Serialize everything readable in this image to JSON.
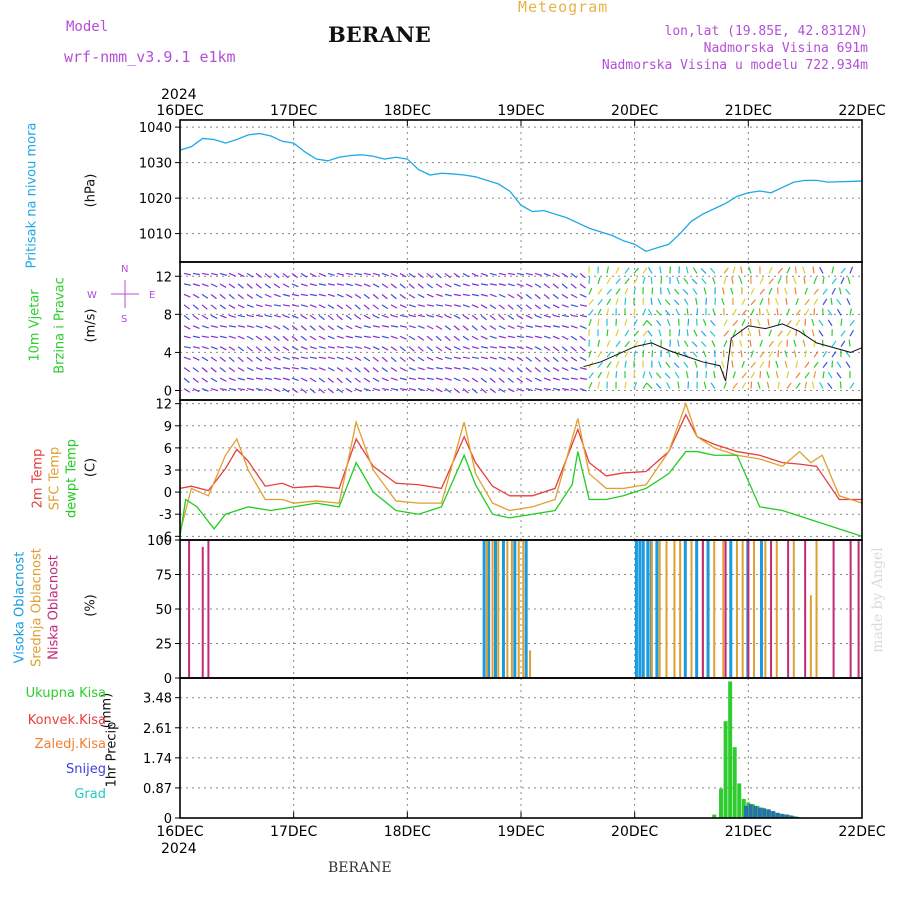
{
  "header": {
    "model_label": "Model",
    "model_name": "wrf-nmm_v3.9.1 e1km",
    "station": "BERANE",
    "meteogram": "Meteogram",
    "lonlat": "lon,lat (19.85E, 42.8312N)",
    "altitude": "Nadmorska Visina 691m",
    "model_altitude": "Nadmorska Visina u modelu 722.934m"
  },
  "footer": {
    "station": "BERANE",
    "credit": "made by Angel"
  },
  "colors": {
    "pressure": "#1fa8e6",
    "wind_label": "#2ecc2e",
    "wind_rose": "#b44fd6",
    "temp": "#e83e3e",
    "sfc_temp": "#e0a030",
    "dew": "#22cc22",
    "cloud_high": "#1a9be0",
    "cloud_mid": "#e0a030",
    "cloud_low": "#c4297a",
    "precip_total": "#2ecc2e",
    "precip_conv": "#e83e3e",
    "precip_frz": "#f08030",
    "precip_snow": "#4040e0",
    "precip_grad": "#22c8c8"
  },
  "wind_rose": {
    "n": "N",
    "s": "S",
    "e": "E",
    "w": "W"
  },
  "chart_data": [
    {
      "type": "line",
      "panel": "pressure",
      "ylabel": "Pritisak na nivou mora",
      "unit": "(hPa)",
      "year": "2024",
      "x_ticks": [
        "16DEC",
        "17DEC",
        "18DEC",
        "19DEC",
        "20DEC",
        "21DEC",
        "22DEC"
      ],
      "ylim": [
        1002,
        1042
      ],
      "y_ticks": [
        "1010",
        "1020",
        "1030",
        "1040"
      ],
      "y_tick_values": [
        1010,
        1020,
        1030,
        1040
      ],
      "series": [
        {
          "x": [
            0,
            0.1,
            0.2,
            0.3,
            0.4,
            0.5,
            0.6,
            0.7,
            0.8,
            0.9,
            1.0,
            1.1,
            1.2,
            1.3,
            1.4,
            1.5,
            1.6,
            1.7,
            1.8,
            1.9,
            2.0,
            2.1,
            2.2,
            2.3,
            2.4,
            2.5,
            2.6,
            2.7,
            2.8,
            2.9,
            3.0,
            3.1,
            3.2,
            3.3,
            3.4,
            3.5,
            3.6,
            3.7,
            3.8,
            3.9,
            4.0,
            4.1,
            4.2,
            4.3,
            4.4,
            4.5,
            4.6,
            4.7,
            4.8,
            4.9,
            5.0,
            5.1,
            5.2,
            5.3,
            5.4,
            5.5,
            5.6,
            5.7,
            5.8,
            5.9,
            6.0
          ],
          "values": [
            1033.5,
            1034.5,
            1036.8,
            1036.5,
            1035.5,
            1036.5,
            1037.8,
            1038.2,
            1037.5,
            1036,
            1035.5,
            1033,
            1031,
            1030.5,
            1031.5,
            1032,
            1032.2,
            1031.8,
            1031,
            1031.5,
            1031,
            1028,
            1026.5,
            1027,
            1026.8,
            1026.5,
            1026,
            1025,
            1024,
            1022,
            1018,
            1016.2,
            1016.5,
            1015.5,
            1014.5,
            1013,
            1011.5,
            1010.5,
            1009.5,
            1008,
            1007,
            1005,
            1006,
            1007,
            1010,
            1013.5,
            1015.5,
            1017,
            1018.5,
            1020.5,
            1021.5,
            1022,
            1021.5,
            1023,
            1024.5,
            1025,
            1025,
            1024.5,
            1024.6,
            1024.7,
            1024.8
          ]
        }
      ]
    },
    {
      "type": "line",
      "panel": "wind",
      "ylabel1": "10m Vjetar",
      "ylabel2": "Brzina i Pravac",
      "unit": "(m/s)",
      "ylim": [
        -1,
        13.5
      ],
      "y_ticks": [
        "0",
        "4",
        "8",
        "12"
      ],
      "y_tick_values": [
        0,
        4,
        8,
        12
      ],
      "series": [
        {
          "x": [
            3.55,
            3.7,
            3.85,
            4.0,
            4.15,
            4.3,
            4.45,
            4.6,
            4.75,
            4.8,
            4.85,
            5.0,
            5.15,
            5.3,
            5.45,
            5.6,
            5.75,
            5.9,
            6.0
          ],
          "values": [
            2.5,
            3.0,
            3.8,
            4.6,
            5.0,
            4.2,
            3.6,
            3.0,
            2.6,
            1.0,
            5.5,
            6.8,
            6.5,
            7.0,
            6.2,
            5.0,
            4.5,
            4.0,
            4.5
          ]
        }
      ]
    },
    {
      "type": "line",
      "panel": "temperature",
      "ylabel1": "2m Temp",
      "ylabel2": "SFC Temp",
      "ylabel3": "dewpt Temp",
      "unit": "(C)",
      "ylim": [
        -6.5,
        12.5
      ],
      "y_ticks": [
        "-6",
        "-3",
        "0",
        "3",
        "6",
        "9",
        "12"
      ],
      "y_tick_values": [
        -6,
        -3,
        0,
        3,
        6,
        9,
        12
      ],
      "series": [
        {
          "name": "2m Temp",
          "x": [
            0,
            0.1,
            0.25,
            0.4,
            0.5,
            0.6,
            0.75,
            0.9,
            1.0,
            1.2,
            1.4,
            1.55,
            1.7,
            1.9,
            2.1,
            2.3,
            2.5,
            2.6,
            2.75,
            2.9,
            3.1,
            3.3,
            3.5,
            3.6,
            3.75,
            3.9,
            4.1,
            4.3,
            4.45,
            4.55,
            4.7,
            4.9,
            5.1,
            5.3,
            5.45,
            5.6,
            5.8,
            6.0
          ],
          "values": [
            0.5,
            0.8,
            0.2,
            3.2,
            5.8,
            4.2,
            0.8,
            1.2,
            0.6,
            0.8,
            0.5,
            7.2,
            3.5,
            1.2,
            1.0,
            0.5,
            7.5,
            4.0,
            0.8,
            -0.5,
            -0.5,
            0.5,
            8.5,
            4.0,
            2.2,
            2.6,
            2.8,
            5.5,
            10.5,
            7.5,
            6.5,
            5.5,
            5.0,
            4.0,
            3.8,
            3.5,
            -1.0,
            -1.0
          ]
        },
        {
          "name": "SFC Temp",
          "x": [
            0,
            0.1,
            0.25,
            0.4,
            0.5,
            0.6,
            0.75,
            0.9,
            1.0,
            1.2,
            1.4,
            1.55,
            1.7,
            1.9,
            2.1,
            2.3,
            2.5,
            2.6,
            2.75,
            2.9,
            3.1,
            3.3,
            3.5,
            3.6,
            3.75,
            3.9,
            4.1,
            4.3,
            4.45,
            4.55,
            4.7,
            4.9,
            5.1,
            5.3,
            5.45,
            5.55,
            5.65,
            5.8,
            6.0
          ],
          "values": [
            -5.5,
            0.5,
            -0.5,
            5.0,
            7.2,
            3.0,
            -1.0,
            -1.0,
            -1.5,
            -1.2,
            -1.5,
            9.5,
            3.0,
            -1.2,
            -1.5,
            -1.5,
            9.5,
            2.5,
            -1.5,
            -2.5,
            -2.0,
            -1.0,
            10.0,
            2.5,
            0.5,
            0.5,
            1.0,
            5.5,
            12.0,
            7.5,
            6.0,
            5.0,
            4.5,
            3.5,
            5.5,
            4.0,
            5.0,
            -0.5,
            -1.5
          ]
        },
        {
          "name": "dewpt Temp",
          "x": [
            0,
            0.05,
            0.15,
            0.3,
            0.4,
            0.6,
            0.8,
            1.0,
            1.2,
            1.4,
            1.55,
            1.7,
            1.9,
            2.1,
            2.3,
            2.5,
            2.6,
            2.75,
            2.9,
            3.1,
            3.3,
            3.45,
            3.5,
            3.6,
            3.75,
            3.9,
            4.1,
            4.3,
            4.45,
            4.55,
            4.7,
            4.9,
            5.1,
            5.3,
            5.5,
            5.7,
            5.9,
            6.0
          ],
          "values": [
            -6.0,
            -1.0,
            -2.0,
            -5.0,
            -3.0,
            -2.0,
            -2.5,
            -2.0,
            -1.5,
            -2.0,
            4.0,
            0.0,
            -2.5,
            -3.0,
            -2.0,
            5.0,
            1.0,
            -3.0,
            -3.5,
            -3.0,
            -2.5,
            1.0,
            5.5,
            -1.0,
            -1.0,
            -0.5,
            0.5,
            2.5,
            5.5,
            5.5,
            5.0,
            5.0,
            -2.0,
            -2.5,
            -3.5,
            -4.5,
            -5.5,
            -6.0
          ]
        }
      ]
    },
    {
      "type": "bar",
      "panel": "clouds",
      "ylabel1": "Visoka Oblacnost",
      "ylabel2": "Srednja Oblacnost",
      "ylabel3": "Niska Oblacnost",
      "unit": "(%)",
      "ylim": [
        0,
        100
      ],
      "y_ticks": [
        "0",
        "25",
        "50",
        "75",
        "100"
      ],
      "y_tick_values": [
        0,
        25,
        50,
        75,
        100
      ],
      "series": [
        {
          "name": "Visoka Oblacnost",
          "x": [
            2.68,
            2.72,
            2.78,
            2.85,
            2.95,
            3.05,
            4.02,
            4.05,
            4.08,
            4.12,
            4.15,
            4.2,
            4.45,
            4.55,
            4.65,
            4.85,
            5.0,
            5.12
          ],
          "values": [
            100,
            100,
            100,
            100,
            100,
            100,
            100,
            100,
            100,
            100,
            100,
            100,
            100,
            100,
            100,
            100,
            100,
            100
          ]
        },
        {
          "name": "Srednja Oblacnost",
          "x": [
            2.7,
            2.75,
            2.8,
            2.88,
            2.92,
            2.98,
            3.02,
            3.08,
            4.15,
            4.22,
            4.28,
            4.35,
            4.4,
            4.5,
            4.6,
            4.7,
            4.78,
            4.9,
            4.95,
            5.05,
            5.15,
            5.25,
            5.4,
            5.55,
            5.6
          ],
          "values": [
            100,
            100,
            100,
            100,
            100,
            100,
            100,
            20,
            100,
            100,
            100,
            100,
            100,
            100,
            100,
            100,
            100,
            100,
            100,
            100,
            100,
            100,
            100,
            60,
            100
          ]
        },
        {
          "name": "Niska Oblacnost",
          "x": [
            0.08,
            0.2,
            0.25,
            4.6,
            4.8,
            5.0,
            5.2,
            5.35,
            5.5,
            5.75,
            5.9,
            5.97
          ],
          "values": [
            100,
            95,
            100,
            100,
            100,
            100,
            100,
            100,
            100,
            100,
            100,
            100
          ]
        }
      ]
    },
    {
      "type": "bar",
      "panel": "precip",
      "ylabel": "1hr Precip",
      "unit": "(mm)",
      "ylim": [
        0,
        4.05
      ],
      "y_ticks": [
        "0",
        "0.87",
        "1.74",
        "2.61",
        "3.48"
      ],
      "y_tick_values": [
        0,
        0.87,
        1.74,
        2.61,
        3.48
      ],
      "legend": [
        "Ukupna Kisa",
        "Konvek.Kisa",
        "Zaledj.Kisa",
        "Snijeg",
        "Grad"
      ],
      "series": [
        {
          "name": "Ukupna Kisa",
          "x": [
            4.7,
            4.76,
            4.8,
            4.84,
            4.88,
            4.92,
            4.96,
            5.0,
            5.04,
            5.08,
            5.12,
            5.16,
            5.2,
            5.24,
            5.28,
            5.32,
            5.36,
            5.4,
            5.44
          ],
          "values": [
            0.1,
            0.85,
            2.8,
            3.95,
            2.05,
            1.0,
            0.55,
            0.45,
            0.4,
            0.35,
            0.3,
            0.25,
            0.2,
            0.15,
            0.12,
            0.1,
            0.08,
            0.05,
            0.03
          ]
        },
        {
          "name": "Snijeg",
          "x": [
            4.98,
            5.02,
            5.06,
            5.1,
            5.14,
            5.18,
            5.22,
            5.26,
            5.3,
            5.34,
            5.38,
            5.42
          ],
          "values": [
            0.35,
            0.4,
            0.35,
            0.3,
            0.28,
            0.25,
            0.2,
            0.15,
            0.12,
            0.1,
            0.07,
            0.04
          ]
        }
      ]
    }
  ]
}
